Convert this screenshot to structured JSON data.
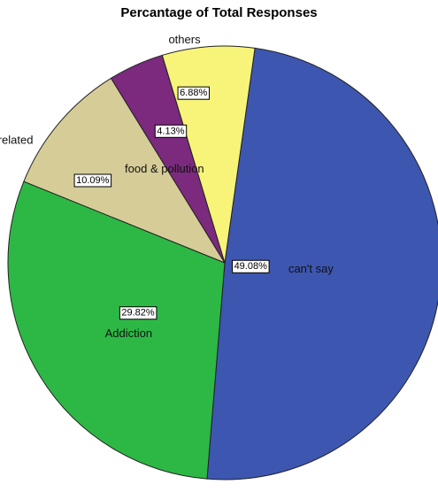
{
  "chart_data": {
    "type": "pie",
    "title": "Percantage of Total Responses",
    "slices": [
      {
        "label": "can't say",
        "value": 49.08,
        "pct_label": "49.08%",
        "color": "#3d56b0"
      },
      {
        "label": "Addiction",
        "value": 29.82,
        "pct_label": "29.82%",
        "color": "#2db846"
      },
      {
        "label": "food & pollution",
        "value": 10.09,
        "pct_label": "10.09%",
        "color": "#d6cc98"
      },
      {
        "label": "childbirth related",
        "value": 4.13,
        "pct_label": "4.13%",
        "color": "#7b2a7e"
      },
      {
        "label": "others",
        "value": 6.88,
        "pct_label": "6.88%",
        "color": "#f8f47a"
      }
    ]
  }
}
